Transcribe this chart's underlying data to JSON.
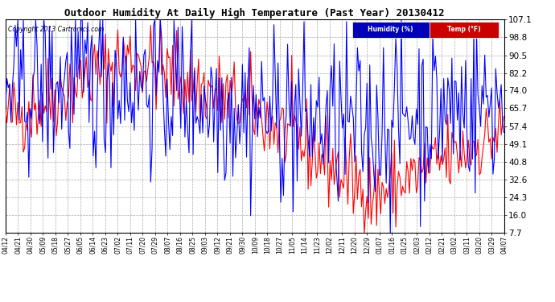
{
  "title": "Outdoor Humidity At Daily High Temperature (Past Year) 20130412",
  "copyright": "Copyright 2013 Cartronics.com",
  "yticks": [
    7.7,
    16.0,
    24.3,
    32.6,
    40.8,
    49.1,
    57.4,
    65.7,
    74.0,
    82.2,
    90.5,
    98.8,
    107.1
  ],
  "ymin": 7.7,
  "ymax": 107.1,
  "bg_color": "#ffffff",
  "plot_bg_color": "#ffffff",
  "grid_color": "#aaaaaa",
  "humidity_color": "#0000ff",
  "temp_color": "#ff0000",
  "legend_humidity_bg": "#0000bb",
  "legend_temp_bg": "#cc0000",
  "x_labels": [
    "04/12",
    "04/21",
    "04/30",
    "05/09",
    "05/18",
    "05/27",
    "06/05",
    "06/14",
    "06/23",
    "07/02",
    "07/11",
    "07/20",
    "07/29",
    "08/07",
    "08/16",
    "08/25",
    "09/03",
    "09/12",
    "09/21",
    "09/30",
    "10/09",
    "10/18",
    "10/27",
    "11/05",
    "11/14",
    "11/23",
    "12/02",
    "12/11",
    "12/20",
    "12/29",
    "01/07",
    "01/16",
    "01/25",
    "02/03",
    "02/12",
    "02/21",
    "03/02",
    "03/11",
    "03/20",
    "03/29",
    "04/07"
  ],
  "n_points": 365,
  "seed": 42
}
